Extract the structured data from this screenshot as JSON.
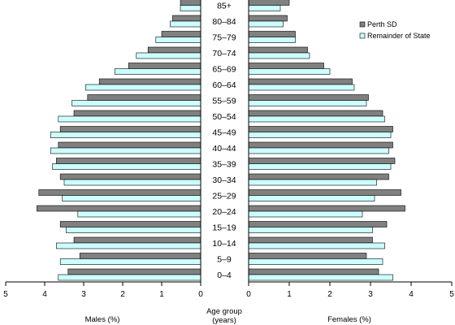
{
  "chart_data": {
    "type": "bar",
    "orientation": "horizontal-population-pyramid",
    "categories": [
      "0–4",
      "5–9",
      "10–14",
      "15–19",
      "20–24",
      "25–29",
      "30–34",
      "35–39",
      "40–44",
      "45–49",
      "50–54",
      "55–59",
      "60–64",
      "65–69",
      "70–74",
      "75–79",
      "80–84",
      "85+"
    ],
    "center_label": "Age group",
    "center_sublabel": "(years)",
    "left_xlabel": "Males (%)",
    "right_xlabel": "Females (%)",
    "xlim": [
      0,
      5
    ],
    "xticks": [
      "0",
      "1",
      "2",
      "3",
      "4",
      "5"
    ],
    "legend_position": "top-right",
    "series": [
      {
        "name": "Perth SD",
        "color": "#808080",
        "males": [
          3.4,
          3.1,
          3.25,
          3.6,
          4.2,
          4.15,
          3.6,
          3.7,
          3.65,
          3.6,
          3.25,
          2.9,
          2.6,
          1.85,
          1.35,
          1.0,
          0.72,
          0.52
        ],
        "females": [
          3.2,
          2.9,
          3.05,
          3.4,
          3.85,
          3.75,
          3.45,
          3.6,
          3.55,
          3.55,
          3.3,
          2.95,
          2.55,
          1.85,
          1.45,
          1.15,
          0.95,
          1.0
        ]
      },
      {
        "name": "Remainder of State",
        "color": "#ccffff",
        "males": [
          3.65,
          3.6,
          3.7,
          3.45,
          3.15,
          3.55,
          3.5,
          3.8,
          3.85,
          3.85,
          3.65,
          3.3,
          2.95,
          2.2,
          1.65,
          1.15,
          0.78,
          0.52
        ],
        "females": [
          3.55,
          3.3,
          3.35,
          3.05,
          2.8,
          3.1,
          3.15,
          3.5,
          3.45,
          3.5,
          3.35,
          2.9,
          2.6,
          2.0,
          1.5,
          1.15,
          0.85,
          0.78
        ]
      }
    ]
  }
}
